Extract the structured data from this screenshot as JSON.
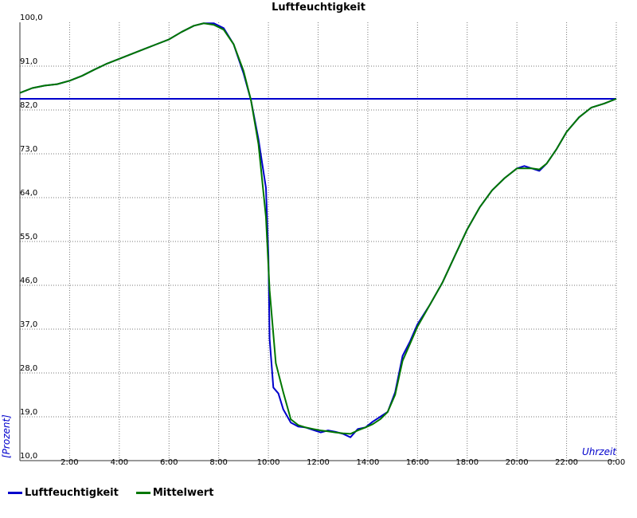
{
  "chart_data": {
    "type": "line",
    "title": "Luftfeuchtigkeit",
    "xlabel": "Uhrzeit",
    "ylabel": "[Prozent]",
    "xlim": [
      0,
      24
    ],
    "ylim": [
      10,
      100
    ],
    "y_ticks": [
      "100,0",
      "91,0",
      "82,0",
      "73,0",
      "64,0",
      "55,0",
      "46,0",
      "37,0",
      "28,0",
      "19,0",
      "10,0"
    ],
    "x_ticks": [
      "2:00",
      "4:00",
      "6:00",
      "8:00",
      "10:00",
      "12:00",
      "14:00",
      "16:00",
      "18:00",
      "20:00",
      "22:00",
      "0:00"
    ],
    "grid": true,
    "legend_position": "bottom-left",
    "reference_line": {
      "y": 84.3,
      "color": "#0000cc"
    },
    "series": [
      {
        "name": "Luftfeuchtigkeit",
        "color": "#0000cc",
        "x": [
          0,
          0.5,
          1,
          1.5,
          2,
          2.5,
          3,
          3.5,
          4,
          4.5,
          5,
          5.5,
          6,
          6.5,
          7,
          7.4,
          7.8,
          8.2,
          8.6,
          9.0,
          9.3,
          9.6,
          9.9,
          10.0,
          10.05,
          10.2,
          10.4,
          10.6,
          10.9,
          11.2,
          11.5,
          11.8,
          12.1,
          12.4,
          12.7,
          13.0,
          13.3,
          13.6,
          13.9,
          14.2,
          14.5,
          14.8,
          15.1,
          15.4,
          15.7,
          16.0,
          16.5,
          17.0,
          17.5,
          18.0,
          18.5,
          19.0,
          19.5,
          20.0,
          20.3,
          20.6,
          20.9,
          21.2,
          21.6,
          22.0,
          22.5,
          23.0,
          23.5,
          24.0
        ],
        "values": [
          85.5,
          86.5,
          87,
          87.3,
          88,
          89,
          90.3,
          91.5,
          92.5,
          93.5,
          94.5,
          95.5,
          96.5,
          98,
          99.3,
          99.8,
          99.8,
          98.8,
          95.5,
          89.5,
          84,
          76,
          66,
          52,
          35,
          25,
          23.8,
          20.5,
          17.8,
          17.0,
          16.8,
          16.3,
          15.8,
          16.2,
          15.9,
          15.5,
          14.8,
          16.5,
          16.8,
          18.0,
          19.0,
          20.0,
          24.0,
          31.5,
          34.5,
          38.0,
          42.0,
          46.5,
          52.0,
          57.5,
          62.0,
          65.5,
          68.0,
          70.0,
          70.5,
          70.0,
          69.5,
          71.0,
          74.0,
          77.5,
          80.5,
          82.5,
          83.3,
          84.3
        ]
      },
      {
        "name": "Mittelwert",
        "color": "#007700",
        "x": [
          0,
          0.5,
          1,
          1.5,
          2,
          2.5,
          3,
          3.5,
          4,
          4.5,
          5,
          5.5,
          6,
          6.5,
          7,
          7.4,
          7.8,
          8.2,
          8.6,
          9.0,
          9.3,
          9.6,
          9.9,
          10.05,
          10.3,
          10.6,
          10.9,
          11.2,
          11.5,
          11.8,
          12.1,
          12.4,
          12.7,
          13.0,
          13.3,
          13.6,
          13.9,
          14.2,
          14.5,
          14.8,
          15.1,
          15.4,
          15.7,
          16.0,
          16.5,
          17.0,
          17.5,
          18.0,
          18.5,
          19.0,
          19.5,
          20.0,
          20.3,
          20.6,
          20.9,
          21.2,
          21.6,
          22.0,
          22.5,
          23.0,
          23.5,
          24.0
        ],
        "values": [
          85.5,
          86.5,
          87,
          87.3,
          88,
          89,
          90.3,
          91.5,
          92.5,
          93.5,
          94.5,
          95.5,
          96.5,
          98,
          99.3,
          99.8,
          99.5,
          98.5,
          95.5,
          90,
          84,
          75,
          60,
          45,
          30,
          24,
          18.5,
          17.3,
          16.8,
          16.5,
          16.2,
          16.0,
          15.8,
          15.6,
          15.5,
          16.2,
          16.8,
          17.5,
          18.5,
          20.0,
          23.5,
          30.5,
          34.0,
          37.5,
          42.0,
          46.5,
          52.0,
          57.5,
          62.0,
          65.5,
          68.0,
          70.0,
          70.0,
          70.0,
          69.8,
          71.0,
          74.0,
          77.5,
          80.5,
          82.5,
          83.3,
          84.3
        ]
      }
    ]
  }
}
